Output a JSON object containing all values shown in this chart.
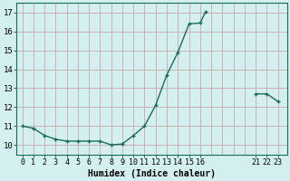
{
  "x": [
    0,
    1,
    2,
    3,
    4,
    5,
    6,
    7,
    8,
    9,
    10,
    11,
    12,
    13,
    14,
    15,
    16,
    16.5,
    21,
    22,
    23
  ],
  "y": [
    11.0,
    10.88,
    10.5,
    10.3,
    10.2,
    10.2,
    10.2,
    10.2,
    10.0,
    10.05,
    10.5,
    11.0,
    12.1,
    13.7,
    14.9,
    16.4,
    16.45,
    17.05,
    12.7,
    12.7,
    12.3
  ],
  "seg1_end": 18,
  "seg2_start": 18,
  "line_color": "#1a6b5a",
  "marker_color": "#1a6b5a",
  "bg_color": "#d4efef",
  "grid_color": "#c8a8a8",
  "xlabel": "Humidex (Indice chaleur)",
  "xlim": [
    -0.5,
    23.8
  ],
  "ylim": [
    9.5,
    17.5
  ],
  "yticks": [
    10,
    11,
    12,
    13,
    14,
    15,
    16,
    17
  ],
  "xticks": [
    0,
    1,
    2,
    3,
    4,
    5,
    6,
    7,
    8,
    9,
    10,
    11,
    12,
    13,
    14,
    15,
    16,
    21,
    22,
    23
  ],
  "xtick_labels": [
    "0",
    "1",
    "2",
    "3",
    "4",
    "5",
    "6",
    "7",
    "8",
    "9",
    "10",
    "11",
    "12",
    "13",
    "14",
    "15",
    "16",
    "21",
    "22",
    "23"
  ],
  "fig_width": 3.2,
  "fig_height": 2.0,
  "dpi": 100
}
